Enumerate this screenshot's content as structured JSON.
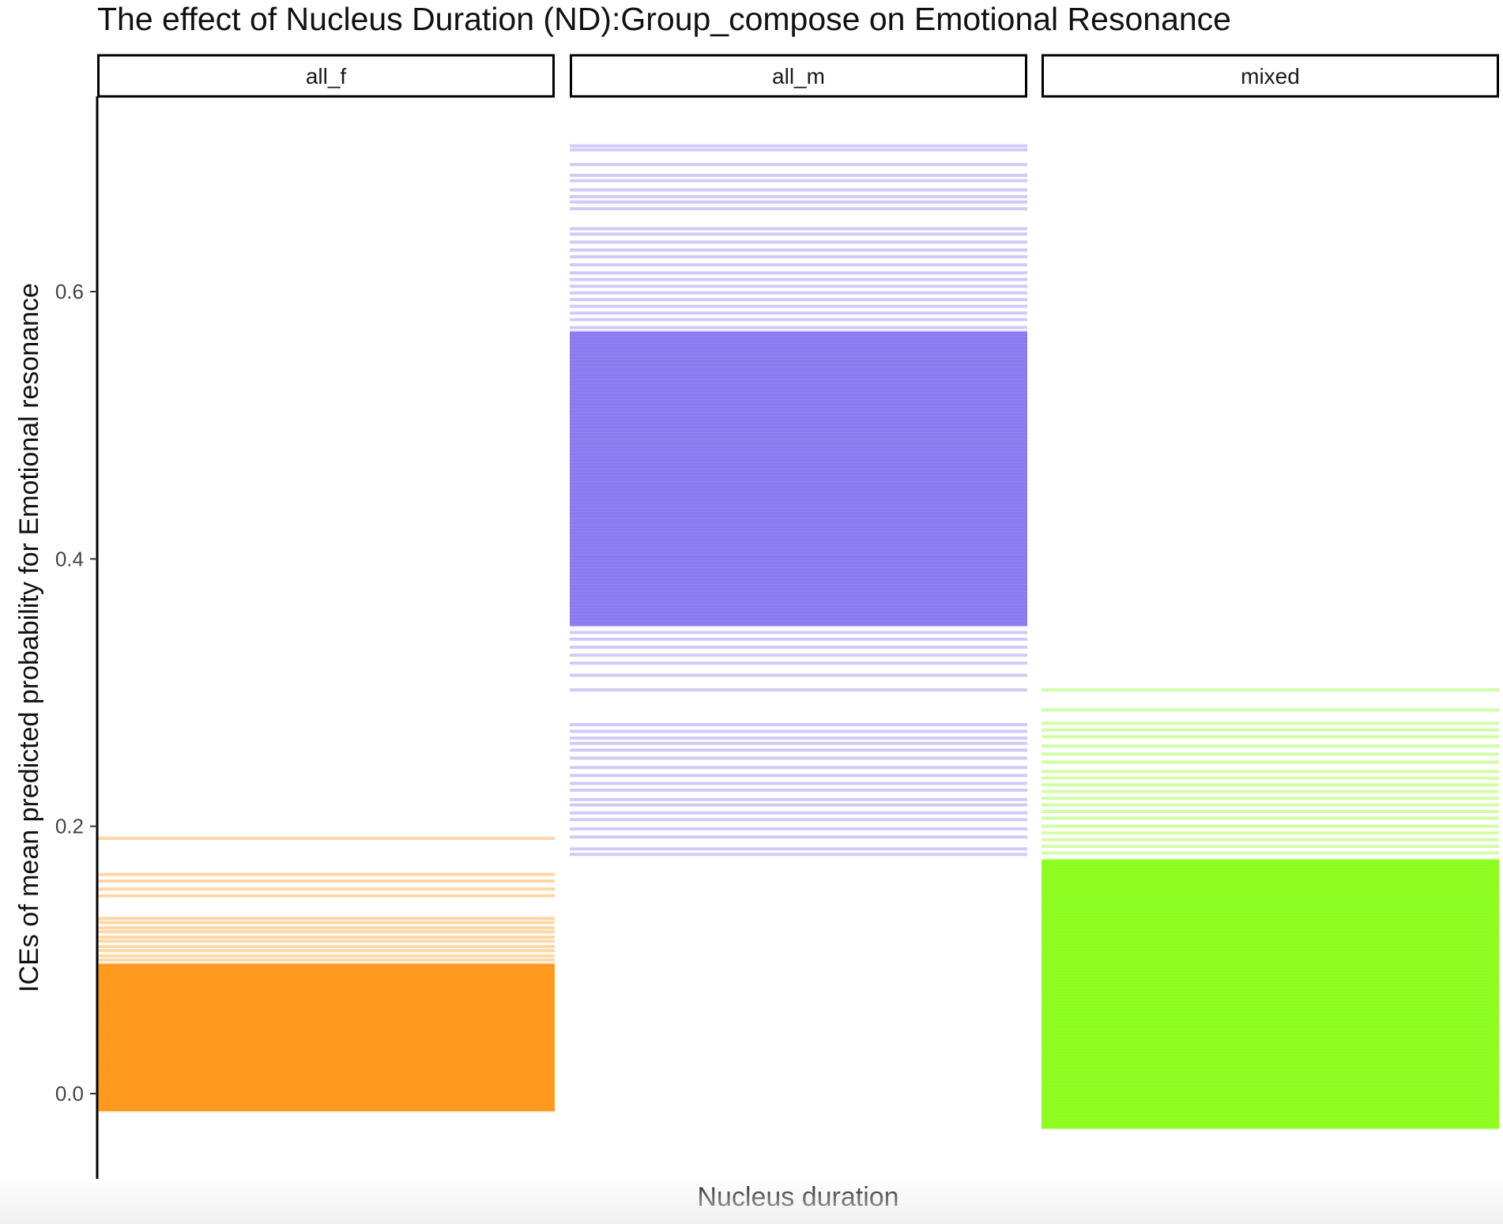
{
  "chart_data": {
    "type": "line",
    "title": "The effect of Nucleus Duration (ND):Group_compose on Emotional Resonance",
    "xlabel": "Nucleus duration",
    "ylabel": "ICEs of mean predicted probability for Emotional resonance",
    "ylim": [
      -0.07,
      0.83
    ],
    "y_ticks": [
      0.0,
      0.2,
      0.4,
      0.6
    ],
    "y_tick_labels": [
      "0.0",
      "0.2",
      "0.4",
      "0.6"
    ],
    "grid": false,
    "legend": "none",
    "panels": [
      {
        "label": "all_f",
        "color": "#ff8c00",
        "sparse_levels": [
          0.191,
          0.164,
          0.159,
          0.153,
          0.148,
          0.131,
          0.128,
          0.124,
          0.121,
          0.117,
          0.114,
          0.11,
          0.107,
          0.103,
          0.1
        ],
        "dense_range": [
          -0.013,
          0.097
        ],
        "dense_count": 60
      },
      {
        "label": "all_m",
        "color": "#7b68ee",
        "sparse_levels": [
          0.709,
          0.706,
          0.695,
          0.687,
          0.683,
          0.676,
          0.671,
          0.667,
          0.662,
          0.647,
          0.643,
          0.637,
          0.631,
          0.626,
          0.62,
          0.614,
          0.609,
          0.604,
          0.599,
          0.594,
          0.589,
          0.584,
          0.579,
          0.573,
          0.345,
          0.34,
          0.334,
          0.328,
          0.322,
          0.313,
          0.302,
          0.276,
          0.271,
          0.266,
          0.262,
          0.257,
          0.251,
          0.244,
          0.238,
          0.232,
          0.227,
          0.22,
          0.216,
          0.21,
          0.205,
          0.198,
          0.192,
          0.183,
          0.179
        ],
        "dense_range": [
          0.35,
          0.57
        ],
        "dense_count": 90
      },
      {
        "label": "mixed",
        "color": "#7cfc00",
        "sparse_levels": [
          0.302,
          0.287,
          0.277,
          0.272,
          0.267,
          0.26,
          0.254,
          0.248,
          0.241,
          0.236,
          0.231,
          0.226,
          0.221,
          0.216,
          0.211,
          0.206,
          0.2,
          0.195,
          0.19,
          0.185,
          0.18
        ],
        "dense_range": [
          -0.026,
          0.175
        ],
        "dense_count": 90
      }
    ]
  }
}
